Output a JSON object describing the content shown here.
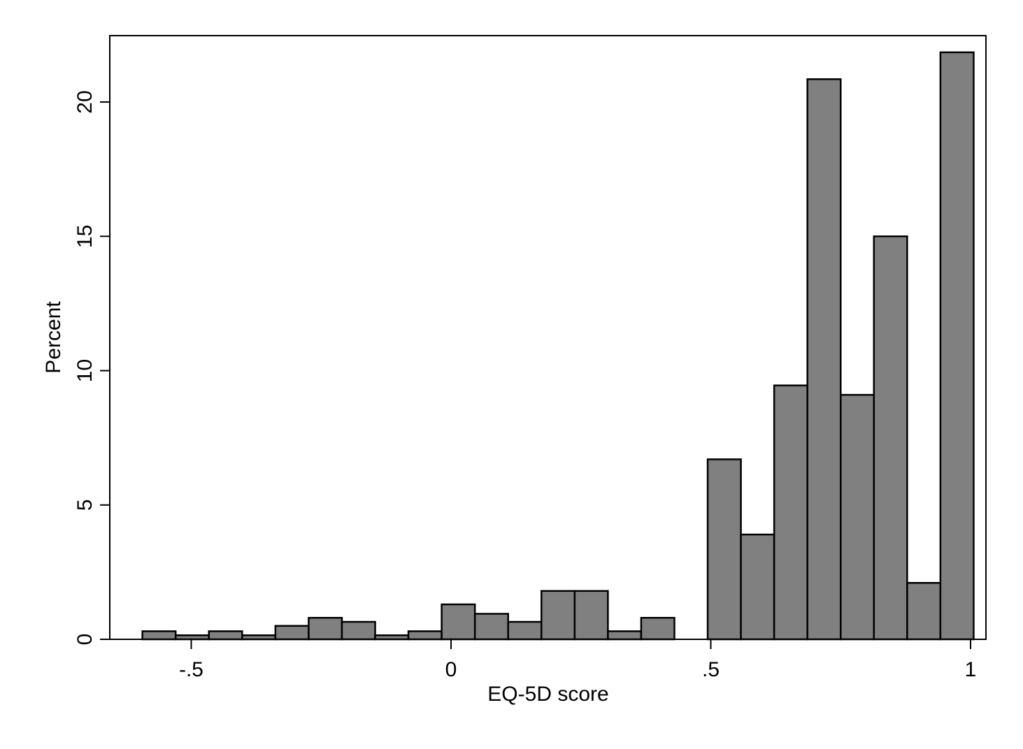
{
  "chart_data": {
    "type": "bar",
    "title": "",
    "xlabel": "EQ-5D score",
    "ylabel": "Percent",
    "xlim": [
      -0.66,
      1.03
    ],
    "ylim": [
      0,
      22.3
    ],
    "x_ticks": [
      {
        "value": -0.5,
        "label": "-.5"
      },
      {
        "value": 0,
        "label": "0"
      },
      {
        "value": 0.5,
        "label": ".5"
      },
      {
        "value": 1,
        "label": "1"
      }
    ],
    "y_ticks": [
      {
        "value": 0,
        "label": "0"
      },
      {
        "value": 5,
        "label": "5"
      },
      {
        "value": 10,
        "label": "10"
      },
      {
        "value": 15,
        "label": "15"
      },
      {
        "value": 20,
        "label": "20"
      }
    ],
    "bins": [
      {
        "x0": -0.594,
        "x1": -0.53,
        "value": 0.3
      },
      {
        "x0": -0.53,
        "x1": -0.466,
        "value": 0.15
      },
      {
        "x0": -0.466,
        "x1": -0.402,
        "value": 0.3
      },
      {
        "x0": -0.402,
        "x1": -0.338,
        "value": 0.15
      },
      {
        "x0": -0.338,
        "x1": -0.274,
        "value": 0.5
      },
      {
        "x0": -0.274,
        "x1": -0.21,
        "value": 0.8
      },
      {
        "x0": -0.21,
        "x1": -0.146,
        "value": 0.65
      },
      {
        "x0": -0.146,
        "x1": -0.082,
        "value": 0.15
      },
      {
        "x0": -0.082,
        "x1": -0.018,
        "value": 0.3
      },
      {
        "x0": -0.018,
        "x1": 0.046,
        "value": 1.3
      },
      {
        "x0": 0.046,
        "x1": 0.11,
        "value": 0.95
      },
      {
        "x0": 0.11,
        "x1": 0.174,
        "value": 0.65
      },
      {
        "x0": 0.174,
        "x1": 0.238,
        "value": 1.8
      },
      {
        "x0": 0.238,
        "x1": 0.302,
        "value": 1.8
      },
      {
        "x0": 0.302,
        "x1": 0.366,
        "value": 0.3
      },
      {
        "x0": 0.366,
        "x1": 0.43,
        "value": 0.8
      },
      {
        "x0": 0.43,
        "x1": 0.494,
        "value": 0
      },
      {
        "x0": 0.494,
        "x1": 0.558,
        "value": 6.7
      },
      {
        "x0": 0.558,
        "x1": 0.622,
        "value": 3.9
      },
      {
        "x0": 0.622,
        "x1": 0.686,
        "value": 9.45
      },
      {
        "x0": 0.686,
        "x1": 0.75,
        "value": 20.85
      },
      {
        "x0": 0.75,
        "x1": 0.814,
        "value": 9.1
      },
      {
        "x0": 0.814,
        "x1": 0.878,
        "value": 15.0
      },
      {
        "x0": 0.878,
        "x1": 0.942,
        "value": 2.1
      },
      {
        "x0": 0.942,
        "x1": 1.006,
        "value": 21.85
      }
    ],
    "bar_color": "#808080",
    "bar_edge_color": "#000000",
    "grid": false,
    "legend": "none"
  }
}
